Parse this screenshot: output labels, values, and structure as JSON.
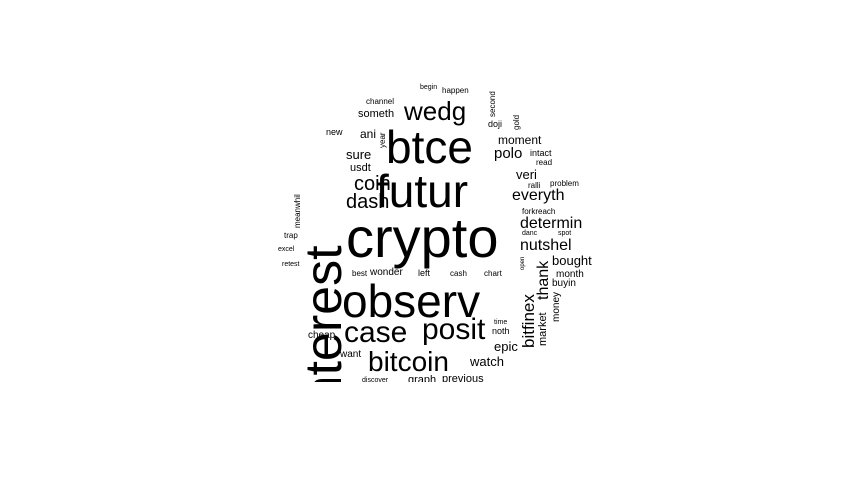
{
  "cloud": {
    "text_color": "#000000",
    "background": "#ffffff",
    "words": [
      {
        "text": "crypto",
        "rotated": false
      },
      {
        "text": "interest",
        "rotated": true
      },
      {
        "text": "futur",
        "rotated": false
      },
      {
        "text": "observ",
        "rotated": false
      },
      {
        "text": "btce",
        "rotated": false
      },
      {
        "text": "posit",
        "rotated": false
      },
      {
        "text": "case",
        "rotated": false
      },
      {
        "text": "bitcoin",
        "rotated": false
      },
      {
        "text": "wedg",
        "rotated": false
      },
      {
        "text": "dash",
        "rotated": false
      },
      {
        "text": "coin",
        "rotated": false
      },
      {
        "text": "everyth",
        "rotated": false
      },
      {
        "text": "nutshel",
        "rotated": false
      },
      {
        "text": "determin",
        "rotated": false
      },
      {
        "text": "bitfinex",
        "rotated": true
      },
      {
        "text": "thank",
        "rotated": true
      },
      {
        "text": "polo",
        "rotated": false
      },
      {
        "text": "bought",
        "rotated": false
      },
      {
        "text": "watch",
        "rotated": false
      },
      {
        "text": "epic",
        "rotated": false
      },
      {
        "text": "veri",
        "rotated": false
      },
      {
        "text": "sure",
        "rotated": false
      },
      {
        "text": "moment",
        "rotated": false
      },
      {
        "text": "ani",
        "rotated": false
      },
      {
        "text": "someth",
        "rotated": false
      },
      {
        "text": "usdt",
        "rotated": false
      },
      {
        "text": "market",
        "rotated": true
      },
      {
        "text": "money",
        "rotated": true
      },
      {
        "text": "month",
        "rotated": false
      },
      {
        "text": "buyin",
        "rotated": false
      },
      {
        "text": "want",
        "rotated": false
      },
      {
        "text": "cheap",
        "rotated": false
      },
      {
        "text": "noth",
        "rotated": false
      },
      {
        "text": "graph",
        "rotated": false
      },
      {
        "text": "previous",
        "rotated": false
      },
      {
        "text": "new",
        "rotated": false
      },
      {
        "text": "channel",
        "rotated": false
      },
      {
        "text": "happen",
        "rotated": false
      },
      {
        "text": "begin",
        "rotated": false
      },
      {
        "text": "second",
        "rotated": true
      },
      {
        "text": "doji",
        "rotated": false
      },
      {
        "text": "gold",
        "rotated": true
      },
      {
        "text": "year",
        "rotated": true
      },
      {
        "text": "intact",
        "rotated": false
      },
      {
        "text": "read",
        "rotated": false
      },
      {
        "text": "ralli",
        "rotated": false
      },
      {
        "text": "problem",
        "rotated": false
      },
      {
        "text": "forkreach",
        "rotated": false
      },
      {
        "text": "danc",
        "rotated": false
      },
      {
        "text": "spot",
        "rotated": false
      },
      {
        "text": "meanwhil",
        "rotated": true
      },
      {
        "text": "trap",
        "rotated": false
      },
      {
        "text": "excel",
        "rotated": false
      },
      {
        "text": "retest",
        "rotated": false
      },
      {
        "text": "best",
        "rotated": false
      },
      {
        "text": "wonder",
        "rotated": false
      },
      {
        "text": "left",
        "rotated": false
      },
      {
        "text": "cash",
        "rotated": false
      },
      {
        "text": "chart",
        "rotated": false
      },
      {
        "text": "open",
        "rotated": true
      },
      {
        "text": "time",
        "rotated": false
      },
      {
        "text": "discover",
        "rotated": false
      }
    ]
  }
}
